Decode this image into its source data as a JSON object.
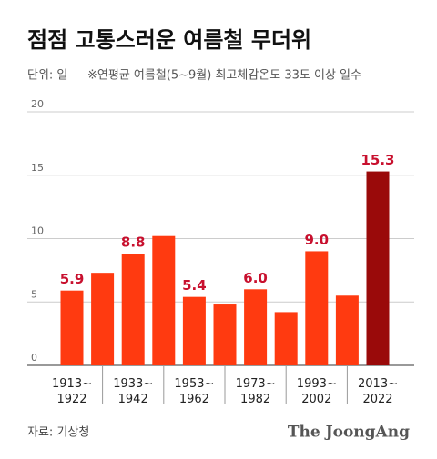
{
  "chart_data": {
    "type": "bar",
    "title": "점점 고통스러운 여름철 무더위",
    "unit": "단위: 일",
    "subtitle": "※연평균 여름철(5~9월) 최고체감온도 33도 이상 일수",
    "categories": [
      "1913~1922",
      null,
      "1933~1942",
      null,
      "1953~1962",
      null,
      "1973~1982",
      null,
      "1993~2002",
      null,
      "2013~2022"
    ],
    "values": [
      5.9,
      7.3,
      8.8,
      10.2,
      5.4,
      4.8,
      6.0,
      4.2,
      9.0,
      5.5,
      15.3
    ],
    "value_labels": [
      "5.9",
      null,
      "8.8",
      null,
      "5.4",
      null,
      "6.0",
      null,
      "9.0",
      null,
      "15.3"
    ],
    "colors": [
      "#ff3a10",
      "#ff3a10",
      "#ff3a10",
      "#ff3a10",
      "#ff3a10",
      "#ff3a10",
      "#ff3a10",
      "#ff3a10",
      "#ff3a10",
      "#ff3a10",
      "#9a0a0a"
    ],
    "label_color": "#c8102e",
    "ylim": [
      0,
      20
    ],
    "yticks": [
      0,
      5,
      10,
      15,
      20
    ],
    "grid": true,
    "source": "자료: 기상청",
    "brand": "The JoongAng"
  }
}
